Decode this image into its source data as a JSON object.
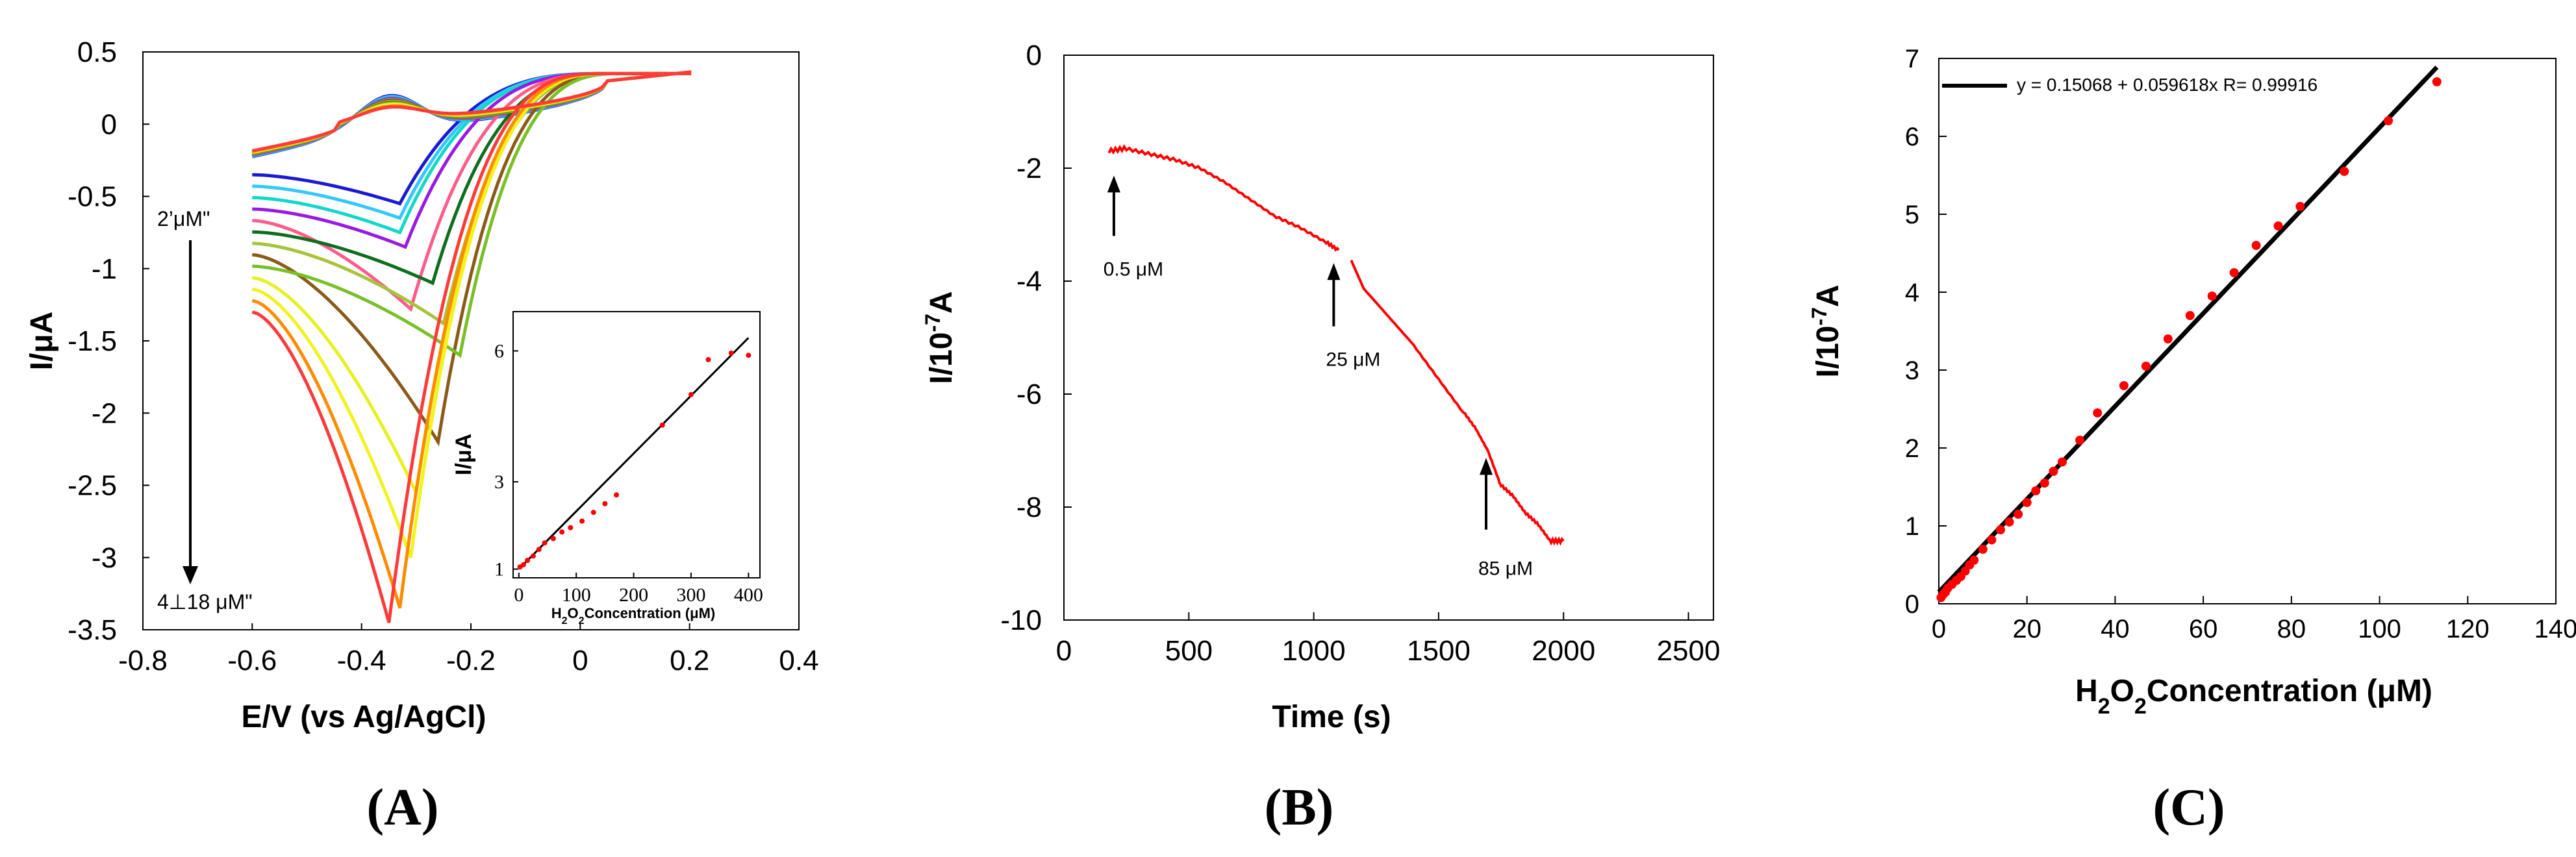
{
  "chart_data": [
    {
      "id": "A",
      "panel_label": "(A)",
      "type": "line",
      "xlabel": "E/V (vs Ag/AgCl)",
      "ylabel": "I/μA",
      "xlim": [
        -0.8,
        0.4
      ],
      "ylim": [
        -3.5,
        0.5
      ],
      "xticks": [
        "-0.8",
        "-0.6",
        "-0.4",
        "-0.2",
        "0",
        "0.2",
        "0.4"
      ],
      "yticks": [
        "0.5",
        "0",
        "-0.5",
        "-1",
        "-1.5",
        "-2",
        "-2.5",
        "-3",
        "-3.5"
      ],
      "annotation_top": "2’μM\"",
      "annotation_bottom": "4⊥18 μM\"",
      "series": [
        {
          "name": "c1",
          "color": "#1a1ad0",
          "peak_i": -0.55,
          "peak_e": -0.33
        },
        {
          "name": "c2",
          "color": "#33c8ff",
          "peak_i": -0.65,
          "peak_e": -0.33
        },
        {
          "name": "c3",
          "color": "#11d8c8",
          "peak_i": -0.75,
          "peak_e": -0.33
        },
        {
          "name": "c4",
          "color": "#9a1ae0",
          "peak_i": -0.85,
          "peak_e": -0.32
        },
        {
          "name": "c5",
          "color": "#ff5c8a",
          "peak_i": -1.28,
          "peak_e": -0.31
        },
        {
          "name": "c6",
          "color": "#0f6e1e",
          "peak_i": -1.1,
          "peak_e": -0.27
        },
        {
          "name": "c7",
          "color": "#a6c43a",
          "peak_i": -1.38,
          "peak_e": -0.25
        },
        {
          "name": "c8",
          "color": "#8a5a18",
          "peak_i": -2.2,
          "peak_e": -0.26
        },
        {
          "name": "c9",
          "color": "#78c028",
          "peak_i": -1.6,
          "peak_e": -0.22
        },
        {
          "name": "c10",
          "color": "#e8f020",
          "peak_i": -2.55,
          "peak_e": -0.3
        },
        {
          "name": "c11",
          "color": "#f2f220",
          "peak_i": -3.0,
          "peak_e": -0.31
        },
        {
          "name": "c12",
          "color": "#ff8c00",
          "peak_i": -3.35,
          "peak_e": -0.33
        },
        {
          "name": "c13",
          "color": "#ff3a3a",
          "peak_i": -3.45,
          "peak_e": -0.35
        }
      ],
      "inset": {
        "xlabel": "H2O2 Concentration (μM)",
        "ylabel": "I/μA",
        "xlim": [
          -10,
          420
        ],
        "ylim": [
          0.8,
          6.9
        ],
        "xticks": [
          "0",
          "100",
          "200",
          "300",
          "400"
        ],
        "yticks": [
          "1",
          "3",
          "6"
        ],
        "points_x": [
          2,
          8,
          15,
          25,
          35,
          45,
          60,
          75,
          90,
          110,
          130,
          150,
          170,
          250,
          300,
          330,
          370,
          400
        ],
        "points_y": [
          1.05,
          1.1,
          1.2,
          1.3,
          1.45,
          1.6,
          1.7,
          1.85,
          1.95,
          2.1,
          2.3,
          2.5,
          2.7,
          4.3,
          5.0,
          5.8,
          5.95,
          5.9
        ],
        "fit_line": {
          "x": [
            0,
            400
          ],
          "y": [
            1.0,
            6.3
          ]
        }
      }
    },
    {
      "id": "B",
      "panel_label": "(B)",
      "type": "line",
      "xlabel": "Time (s)",
      "ylabel": "I/10-7A",
      "ylabel_main": "I/10",
      "ylabel_sup": "-7",
      "ylabel_tail": "A",
      "xlim": [
        0,
        2600
      ],
      "ylim": [
        -10,
        0
      ],
      "xticks": [
        "0",
        "500",
        "1000",
        "1500",
        "2000",
        "2500"
      ],
      "yticks": [
        "0",
        "-2",
        "-4",
        "-6",
        "-8",
        "-10"
      ],
      "series": [
        {
          "name": "segment-1",
          "color": "#ff0000",
          "x": [
            180,
            250,
            350,
            450,
            550,
            650,
            750,
            850,
            950,
            1050,
            1100
          ],
          "y": [
            -1.7,
            -1.65,
            -1.75,
            -1.85,
            -2.0,
            -2.25,
            -2.55,
            -2.85,
            -3.05,
            -3.3,
            -3.45
          ]
        },
        {
          "name": "segment-2",
          "color": "#ff0000",
          "x": [
            1150,
            1200,
            1300,
            1400,
            1500,
            1600,
            1650,
            1700,
            1750,
            1800,
            1850,
            1900,
            1950,
            2000
          ],
          "y": [
            -3.6,
            -4.1,
            -4.6,
            -5.1,
            -5.7,
            -6.3,
            -6.6,
            -7.0,
            -7.6,
            -7.8,
            -8.1,
            -8.3,
            -8.6,
            -8.6
          ]
        }
      ],
      "annotations": [
        {
          "text": "0.5 μM",
          "x": 200,
          "y_tail": -3.2,
          "y_head": -2.2,
          "label_y": -3.9
        },
        {
          "text": "25 μM",
          "x": 1080,
          "y_tail": -4.8,
          "y_head": -3.75,
          "label_y": -5.5
        },
        {
          "text": "85 μM",
          "x": 1690,
          "y_tail": -8.4,
          "y_head": -7.2,
          "label_y": -9.2
        }
      ]
    },
    {
      "id": "C",
      "panel_label": "(C)",
      "type": "scatter",
      "xlabel": "H2O2Concentration (μM)",
      "xlabel_parts": [
        "H",
        "2",
        "O",
        "2",
        "Concentration (μM)"
      ],
      "ylabel": "I/10-7A",
      "ylabel_main": "I/10",
      "ylabel_sup": "-7",
      "ylabel_tail": "A",
      "xlim": [
        0,
        140
      ],
      "ylim": [
        0,
        7
      ],
      "xticks": [
        "0",
        "20",
        "40",
        "60",
        "80",
        "100",
        "120",
        "140"
      ],
      "yticks": [
        "0",
        "1",
        "2",
        "3",
        "4",
        "5",
        "6",
        "7"
      ],
      "equation": "y = 0.15068 + 0.059618x   R= 0.99916",
      "fit": {
        "intercept": 0.15068,
        "slope": 0.059618,
        "x_range": [
          0,
          113
        ]
      },
      "points_x": [
        0.5,
        1,
        1.5,
        2,
        3,
        4,
        5,
        6,
        7,
        8,
        10,
        12,
        14,
        16,
        18,
        20,
        22,
        24,
        26,
        28,
        32,
        36,
        42,
        47,
        52,
        57,
        62,
        67,
        72,
        77,
        82,
        92,
        102,
        113
      ],
      "points_y": [
        0.08,
        0.12,
        0.15,
        0.2,
        0.25,
        0.3,
        0.35,
        0.42,
        0.5,
        0.56,
        0.7,
        0.82,
        0.95,
        1.05,
        1.15,
        1.3,
        1.45,
        1.55,
        1.7,
        1.82,
        2.1,
        2.45,
        2.8,
        3.05,
        3.4,
        3.7,
        3.95,
        4.25,
        4.6,
        4.85,
        5.1,
        5.55,
        6.2,
        6.7
      ],
      "color": "#ff0000"
    }
  ]
}
